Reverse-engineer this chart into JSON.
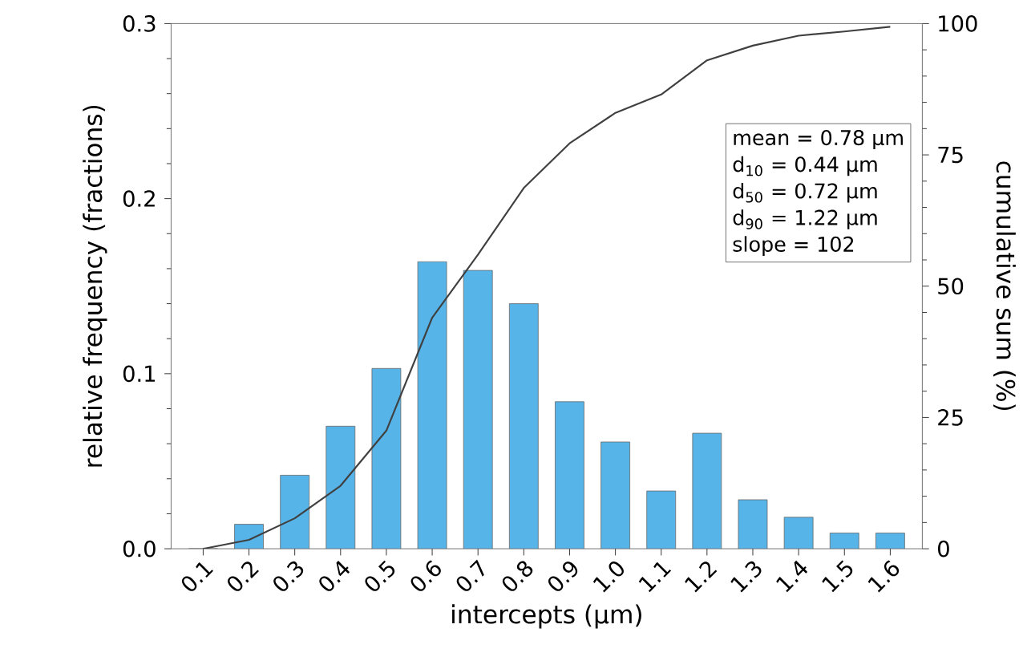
{
  "chart_data": {
    "type": "bar",
    "categories": [
      "0.1",
      "0.2",
      "0.3",
      "0.4",
      "0.5",
      "0.6",
      "0.7",
      "0.8",
      "0.9",
      "1.0",
      "1.1",
      "1.2",
      "1.3",
      "1.4",
      "1.5",
      "1.6"
    ],
    "series": [
      {
        "color": "#56b4e9",
        "values": [
          0,
          0.014,
          0.042,
          0.07,
          0.103,
          0.164,
          0.159,
          0.14,
          0.084,
          0.061,
          0.033,
          0.066,
          0.028,
          0.018,
          0.009,
          0.009
        ]
      },
      {
        "type": "line",
        "axis": "y2",
        "color": "#404040",
        "values": [
          0,
          1.7,
          5.8,
          12,
          22.5,
          44,
          56,
          68.7,
          77.2,
          83,
          86.5,
          93,
          95.8,
          97.7,
          98.5,
          99.4
        ]
      }
    ],
    "xlabel": "intercepts (µm)",
    "ylabel": "relative frequency (fractions)",
    "y2label": "cumulative sum (%)",
    "ylim": [
      0,
      0.3
    ],
    "yticks": [
      {
        "value": 0,
        "label": "0.0"
      },
      0.1,
      0.2,
      0.3
    ],
    "y2lim": [
      0,
      100
    ],
    "y2ticks": [
      0,
      25,
      50,
      75,
      100
    ],
    "annotations": [
      "mean =  0.78 µm",
      "d$_{10}$    =  0.44 µm",
      "d$_{50}$    =  0.72 µm",
      "d$_{90}$    =  1.22 µm",
      "slope =  102"
    ],
    "grid": false,
    "marker": "none",
    "line_style": "solid"
  }
}
